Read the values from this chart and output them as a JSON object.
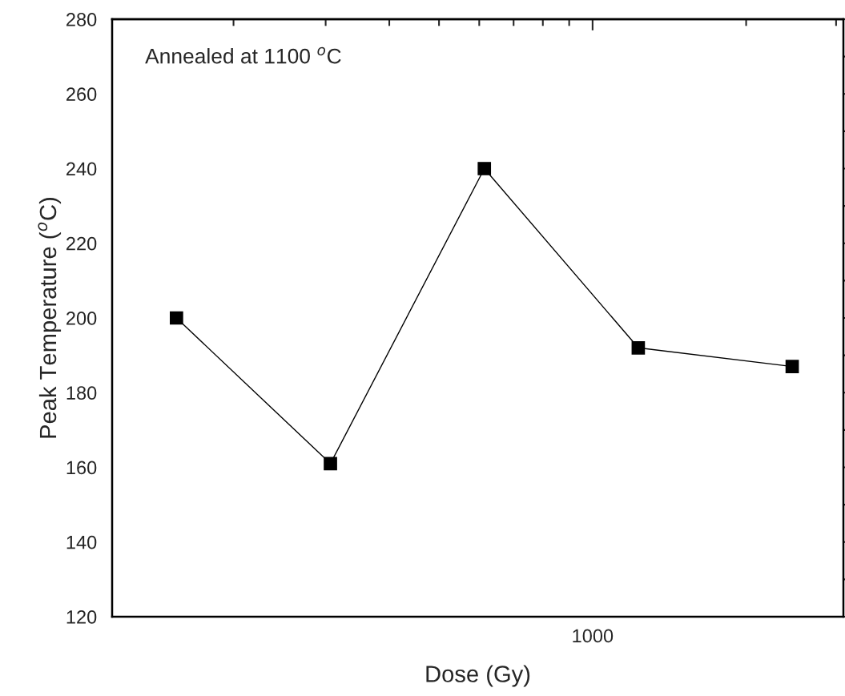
{
  "chart_data": {
    "type": "line",
    "xlabel": "Dose (Gy)",
    "ylabel": "Peak Temperature ($^{o}$C)",
    "annotations": [
      "Annealed at 1100 $^{o}$C",
      "1000"
    ],
    "categories": [
      null,
      null,
      null,
      null,
      null
    ],
    "series": [
      {
        "color": "#000000",
        "values": [
          200,
          161,
          240,
          192,
          187
        ]
      }
    ],
    "ylim": [
      120,
      280
    ],
    "yticks": [
      120,
      140,
      160,
      180,
      200,
      220,
      240,
      260,
      280
    ],
    "marker": "square",
    "line_style": "solid",
    "grid": false,
    "legend": false
  }
}
